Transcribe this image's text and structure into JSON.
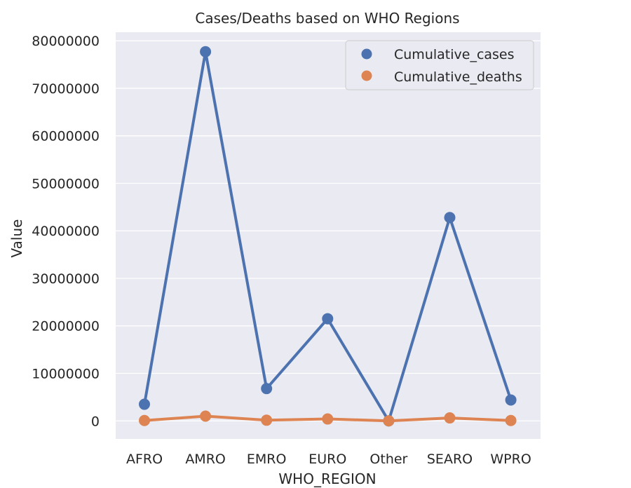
{
  "chart_data": {
    "type": "line",
    "title": "Cases/Deaths based on WHO Regions",
    "xlabel": "WHO_REGION",
    "ylabel": "Value",
    "categories": [
      "AFRO",
      "AMRO",
      "EMRO",
      "EURO",
      "Other",
      "SEARO",
      "WPRO"
    ],
    "series": [
      {
        "name": "Cumulative_cases",
        "color": "#4c72b0",
        "values": [
          3500000,
          77700000,
          6800000,
          21500000,
          0,
          42800000,
          4400000
        ]
      },
      {
        "name": "Cumulative_deaths",
        "color": "#dd8452",
        "values": [
          70000,
          1000000,
          140000,
          400000,
          0,
          620000,
          70000
        ]
      }
    ],
    "yticks": [
      0,
      10000000,
      20000000,
      30000000,
      40000000,
      50000000,
      60000000,
      70000000,
      80000000
    ],
    "ytick_labels": [
      "0",
      "10000000",
      "20000000",
      "30000000",
      "40000000",
      "50000000",
      "60000000",
      "70000000",
      "80000000"
    ],
    "ylim": [
      -3800000,
      81800000
    ],
    "grid": true,
    "legend_position": "top-right",
    "background_color": "#eaeaf2"
  }
}
